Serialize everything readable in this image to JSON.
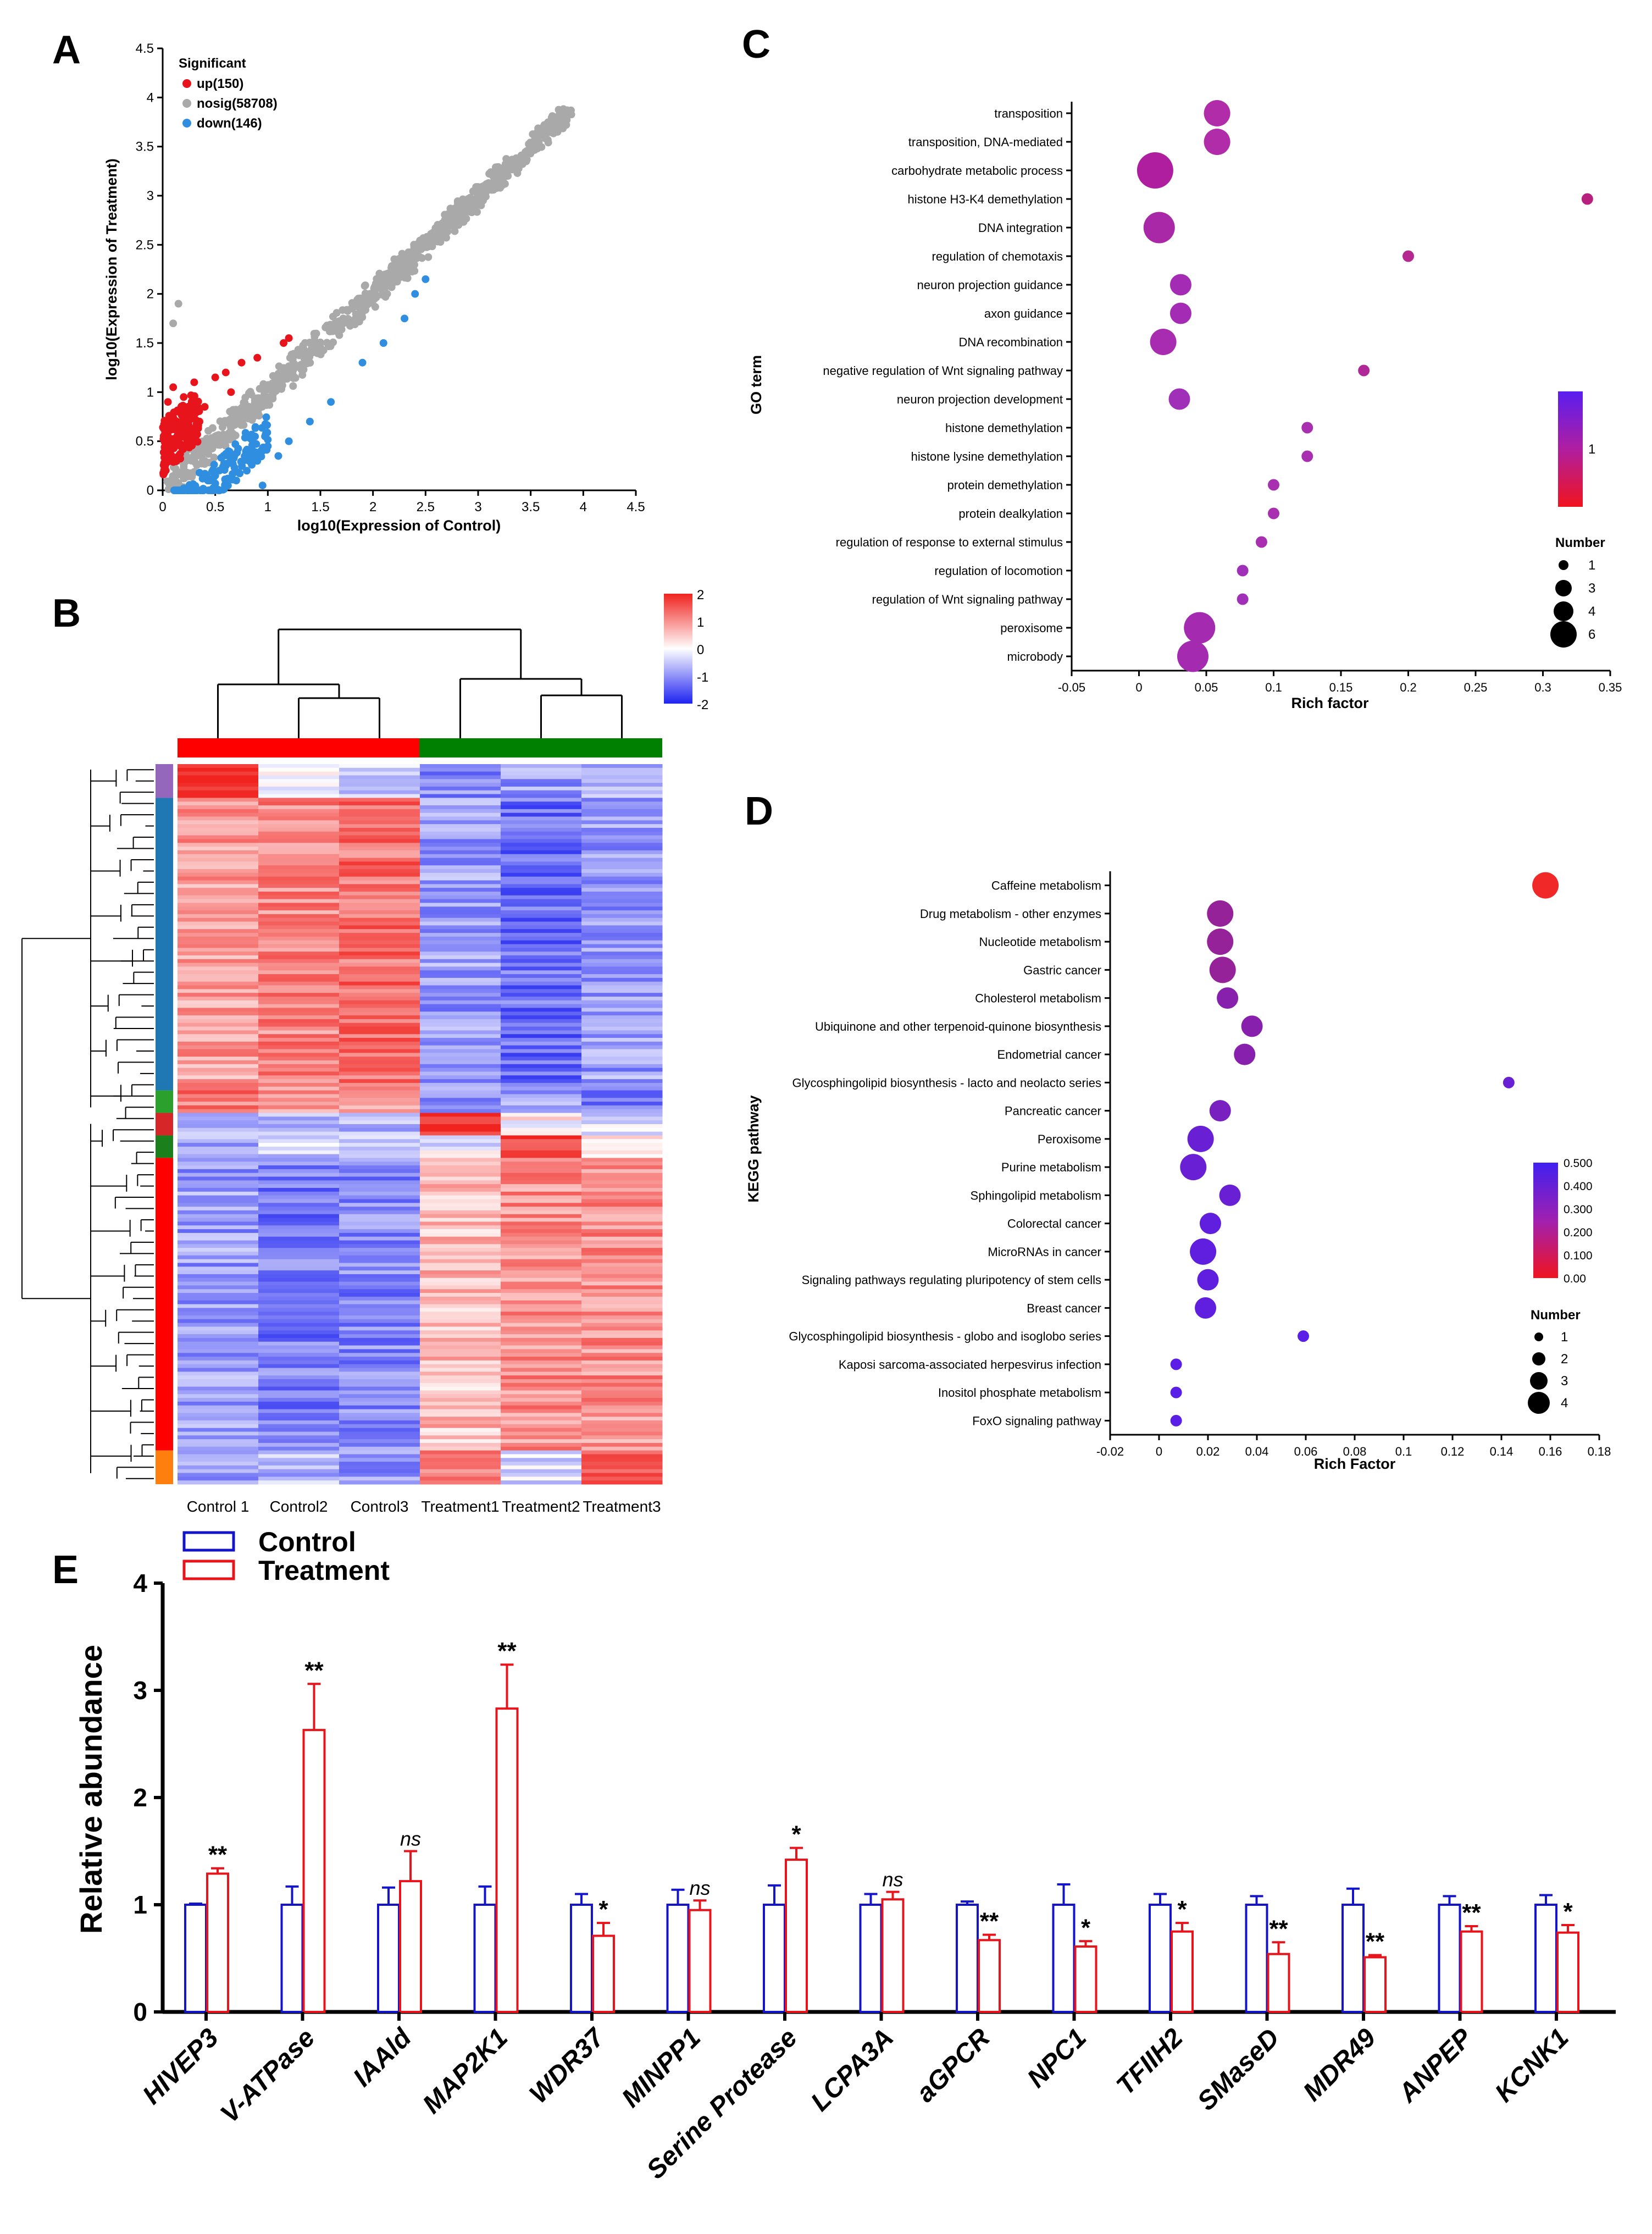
{
  "panels": {
    "A": "A",
    "B": "B",
    "C": "C",
    "D": "D",
    "E": "E"
  },
  "colors": {
    "up": "#e8141c",
    "nosig": "#a9a9a9",
    "down": "#2f8ee0",
    "hot": "#f0231f",
    "cold": "#1e23f0",
    "control": "#1414c8",
    "treatment": "#e8141c",
    "groupControl": "#ff0000",
    "groupTreatment": "#008000"
  },
  "chart_data": [
    {
      "id": "A",
      "type": "scatter",
      "xlabel": "log10(Expression of Control)",
      "ylabel": "log10(Expression of Treatment)",
      "xlim": [
        0,
        4.5
      ],
      "ylim": [
        0,
        4.5
      ],
      "xticks": [
        "0",
        "0.5",
        "1",
        "1.5",
        "2",
        "2.5",
        "3",
        "3.5",
        "4",
        "4.5"
      ],
      "yticks": [
        "0",
        "0.5",
        "1",
        "1.5",
        "2",
        "2.5",
        "3",
        "3.5",
        "4",
        "4.5"
      ],
      "legend_title": "Significant",
      "series": [
        {
          "name": "up(150)",
          "color": "#e8141c",
          "points": [
            [
              0.05,
              0.9
            ],
            [
              0.1,
              1.05
            ],
            [
              0.15,
              0.8
            ],
            [
              0.2,
              0.95
            ],
            [
              0.3,
              1.1
            ],
            [
              0.35,
              0.7
            ],
            [
              0.5,
              1.15
            ],
            [
              0.6,
              1.2
            ],
            [
              0.75,
              1.3
            ],
            [
              0.9,
              1.35
            ],
            [
              1.15,
              1.5
            ],
            [
              1.2,
              1.55
            ],
            [
              0.08,
              0.3
            ],
            [
              0.12,
              0.45
            ],
            [
              0.18,
              0.6
            ],
            [
              0.25,
              0.5
            ],
            [
              0.4,
              0.85
            ],
            [
              0.02,
              0.2
            ],
            [
              0.22,
              0.75
            ],
            [
              0.65,
              1.0
            ]
          ]
        },
        {
          "name": "nosig(58708)",
          "color": "#a9a9a9",
          "points": [
            [
              0.1,
              0.1
            ],
            [
              0.2,
              0.25
            ],
            [
              0.3,
              0.35
            ],
            [
              0.5,
              0.55
            ],
            [
              0.7,
              0.75
            ],
            [
              0.9,
              0.9
            ],
            [
              1.0,
              1.05
            ],
            [
              1.2,
              1.2
            ],
            [
              1.5,
              1.5
            ],
            [
              1.8,
              1.85
            ],
            [
              2.0,
              2.0
            ],
            [
              2.3,
              2.3
            ],
            [
              2.6,
              2.65
            ],
            [
              2.9,
              2.9
            ],
            [
              3.2,
              3.25
            ],
            [
              3.5,
              3.5
            ],
            [
              3.8,
              3.85
            ],
            [
              0.15,
              1.9
            ],
            [
              0.1,
              1.7
            ],
            [
              0.4,
              0.3
            ]
          ]
        },
        {
          "name": "down(146)",
          "color": "#2f8ee0",
          "points": [
            [
              0.3,
              0.05
            ],
            [
              0.5,
              0.15
            ],
            [
              0.6,
              0.25
            ],
            [
              0.8,
              0.2
            ],
            [
              0.9,
              0.3
            ],
            [
              1.2,
              0.5
            ],
            [
              1.6,
              0.9
            ],
            [
              2.4,
              2.0
            ],
            [
              2.5,
              2.15
            ],
            [
              2.3,
              1.75
            ],
            [
              0.2,
              0.02
            ],
            [
              0.7,
              0.1
            ],
            [
              1.0,
              0.45
            ],
            [
              1.4,
              0.7
            ],
            [
              0.45,
              0.1
            ],
            [
              0.35,
              0.18
            ],
            [
              1.1,
              0.35
            ],
            [
              2.1,
              1.5
            ],
            [
              1.9,
              1.3
            ],
            [
              0.95,
              0.05
            ]
          ]
        }
      ]
    },
    {
      "id": "B",
      "type": "heatmap",
      "columns": [
        "Control 1",
        "Control2",
        "Control3",
        "Treatment1",
        "Treatment2",
        "Treatment3"
      ],
      "scale_ticks": [
        "2",
        "1",
        "0",
        "-1",
        "-2"
      ],
      "scale_range": [
        -2,
        2
      ],
      "row_clusters": [
        {
          "color": "#9467bd",
          "rows": 3,
          "values": [
            1.9,
            0.1,
            -0.5,
            -1.0,
            -0.9,
            -0.8
          ]
        },
        {
          "color": "#1f77b4",
          "rows": 26,
          "values": [
            0.9,
            1.1,
            1.3,
            -0.9,
            -1.3,
            -0.9
          ]
        },
        {
          "color": "#2ca02c",
          "rows": 2,
          "values": [
            1.2,
            1.0,
            0.7,
            -0.9,
            -0.8,
            -1.2
          ]
        },
        {
          "color": "#d62728",
          "rows": 2,
          "values": [
            -0.5,
            -0.6,
            -0.7,
            1.9,
            0.1,
            -0.2
          ]
        },
        {
          "color": "#1b7f1b",
          "rows": 2,
          "values": [
            -0.8,
            -0.5,
            -0.6,
            -0.2,
            1.9,
            0.5
          ]
        },
        {
          "color": "#ff0000",
          "rows": 26,
          "values": [
            -0.9,
            -1.2,
            -1.1,
            0.6,
            1.0,
            1.0
          ]
        },
        {
          "color": "#ff7f0e",
          "rows": 3,
          "values": [
            -0.8,
            -0.6,
            -0.9,
            1.0,
            -0.3,
            1.4
          ]
        }
      ]
    },
    {
      "id": "C",
      "type": "scatter",
      "ylabel": "GO term",
      "xlabel": "Rich factor",
      "xlim": [
        -0.05,
        0.35
      ],
      "xticks": [
        "-0.05",
        "0",
        "0.05",
        "0.1",
        "0.15",
        "0.2",
        "0.25",
        "0.3",
        "0.35"
      ],
      "terms": [
        "transposition",
        "transposition, DNA-mediated",
        "carbohydrate metabolic process",
        "histone H3-K4 demethylation",
        "DNA integration",
        "regulation of chemotaxis",
        "neuron projection guidance",
        "axon guidance",
        "DNA recombination",
        "negative regulation of Wnt signaling pathway",
        "neuron projection development",
        "histone demethylation",
        "histone lysine demethylation",
        "protein demethylation",
        "protein dealkylation",
        "regulation of response to external stimulus",
        "regulation of locomotion",
        "regulation of Wnt signaling pathway",
        "peroxisome",
        "microbody"
      ],
      "rich_factor": [
        0.058,
        0.058,
        0.012,
        0.333,
        0.015,
        0.2,
        0.031,
        0.031,
        0.018,
        0.167,
        0.03,
        0.125,
        0.125,
        0.1,
        0.1,
        0.091,
        0.077,
        0.077,
        0.045,
        0.04
      ],
      "number": [
        4,
        4,
        6,
        1,
        5,
        1,
        3,
        3,
        4,
        1,
        3,
        1,
        1,
        1,
        1,
        1,
        1,
        1,
        5,
        5
      ],
      "colorbar_label": "1",
      "size_legend_title": "Number",
      "size_legend": [
        "1",
        "3",
        "4",
        "6"
      ]
    },
    {
      "id": "D",
      "type": "scatter",
      "ylabel": "KEGG pathway",
      "xlabel": "Rich Factor",
      "xlim": [
        -0.02,
        0.18
      ],
      "xticks": [
        "-0.02",
        "0",
        "0.02",
        "0.04",
        "0.06",
        "0.08",
        "0.1",
        "0.12",
        "0.14",
        "0.16",
        "0.18"
      ],
      "terms": [
        "Caffeine metabolism",
        "Drug metabolism - other enzymes",
        "Nucleotide metabolism",
        "Gastric cancer",
        "Cholesterol metabolism",
        "Ubiquinone and other terpenoid-quinone biosynthesis",
        "Endometrial cancer",
        "Glycosphingolipid biosynthesis - lacto and neolacto series",
        "Pancreatic cancer",
        "Peroxisome",
        "Purine metabolism",
        "Sphingolipid metabolism",
        "Colorectal cancer",
        "MicroRNAs in cancer",
        "Signaling pathways regulating pluripotency of stem cells",
        "Breast cancer",
        "Glycosphingolipid biosynthesis - globo and isoglobo series",
        "Kaposi sarcoma-associated herpesvirus infection",
        "Inositol phosphate metabolism",
        "FoxO signaling pathway"
      ],
      "rich_factor": [
        0.158,
        0.025,
        0.025,
        0.026,
        0.028,
        0.038,
        0.035,
        0.143,
        0.025,
        0.017,
        0.014,
        0.029,
        0.021,
        0.018,
        0.02,
        0.019,
        0.059,
        0.007,
        0.007,
        0.007
      ],
      "number": [
        4,
        4,
        4,
        4,
        3,
        3,
        3,
        1,
        3,
        4,
        4,
        3,
        3,
        4,
        3,
        3,
        1,
        1,
        1,
        1
      ],
      "qvalue": [
        0.0,
        0.3,
        0.3,
        0.3,
        0.35,
        0.35,
        0.35,
        0.45,
        0.4,
        0.45,
        0.45,
        0.45,
        0.48,
        0.48,
        0.48,
        0.48,
        0.5,
        0.5,
        0.5,
        0.5
      ],
      "colorbar_ticks": [
        "0.500",
        "0.400",
        "0.300",
        "0.200",
        "0.100",
        "0.00"
      ],
      "size_legend_title": "Number",
      "size_legend": [
        "1",
        "2",
        "3",
        "4"
      ]
    },
    {
      "id": "E",
      "type": "bar",
      "ylabel": "Relative abundance",
      "ylim": [
        0,
        4
      ],
      "yticks": [
        "0",
        "1",
        "2",
        "3",
        "4"
      ],
      "categories": [
        "HIVEP3",
        "V-ATPase",
        "IAAld",
        "MAP2K1",
        "WDR37",
        "MINPP1",
        "Serine Protease",
        "LCPA3A",
        "aGPCR",
        "NPC1",
        "TFIIH2",
        "SMaseD",
        "MDR49",
        "ANPEP",
        "KCNK1"
      ],
      "series": [
        {
          "name": "Control",
          "values": [
            1.0,
            1.0,
            1.0,
            1.0,
            1.0,
            1.0,
            1.0,
            1.0,
            1.0,
            1.0,
            1.0,
            1.0,
            1.0,
            1.0,
            1.0
          ],
          "errors": [
            0.01,
            0.17,
            0.16,
            0.17,
            0.1,
            0.14,
            0.18,
            0.1,
            0.03,
            0.19,
            0.1,
            0.08,
            0.15,
            0.08,
            0.09
          ]
        },
        {
          "name": "Treatment",
          "values": [
            1.29,
            2.63,
            1.22,
            2.83,
            0.71,
            0.95,
            1.42,
            1.05,
            0.67,
            0.61,
            0.75,
            0.54,
            0.51,
            0.75,
            0.74
          ],
          "errors": [
            0.05,
            0.43,
            0.28,
            0.41,
            0.12,
            0.09,
            0.11,
            0.07,
            0.05,
            0.05,
            0.08,
            0.11,
            0.02,
            0.05,
            0.07
          ]
        }
      ],
      "significance": [
        "**",
        "**",
        "ns",
        "**",
        "*",
        "ns",
        "*",
        "ns",
        "**",
        "*",
        "*",
        "**",
        "**",
        "**",
        "*"
      ]
    }
  ]
}
